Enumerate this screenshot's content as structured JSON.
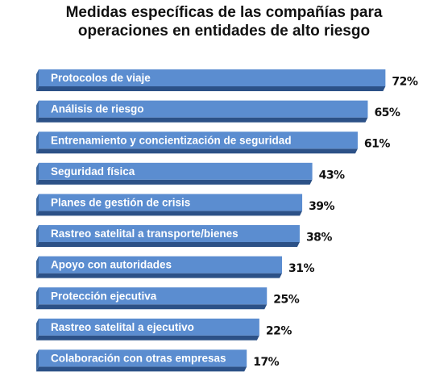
{
  "chart_data": {
    "type": "bar",
    "orientation": "horizontal",
    "title": "Medidas específicas de las compañías para operaciones en entidades de alto riesgo",
    "categories": [
      "Protocolos de viaje",
      "Análisis de riesgo",
      "Entrenamiento y concientización de seguridad",
      "Seguridad física",
      "Planes de gestión de crisis",
      "Rastreo satelital a transporte/bienes",
      "Apoyo con autoridades",
      "Protección ejecutiva",
      "Rastreo satelital a ejecutivo",
      "Colaboración con otras empresas"
    ],
    "values": [
      72,
      65,
      61,
      43,
      39,
      38,
      31,
      25,
      22,
      17
    ],
    "value_labels": [
      "72%",
      "65%",
      "61%",
      "43%",
      "39%",
      "38%",
      "31%",
      "25%",
      "22%",
      "17%"
    ],
    "color": "#5b8dd0"
  }
}
